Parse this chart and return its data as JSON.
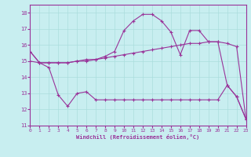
{
  "xlabel": "Windchill (Refroidissement éolien,°C)",
  "bg_color": "#c8eef0",
  "line_color": "#993399",
  "grid_color": "#aadddd",
  "xlim": [
    0,
    23
  ],
  "ylim": [
    11,
    18.5
  ],
  "yticks": [
    11,
    12,
    13,
    14,
    15,
    16,
    17,
    18
  ],
  "xticks": [
    0,
    1,
    2,
    3,
    4,
    5,
    6,
    7,
    8,
    9,
    10,
    11,
    12,
    13,
    14,
    15,
    16,
    17,
    18,
    19,
    20,
    21,
    22,
    23
  ],
  "line1_x": [
    0,
    1,
    2,
    3,
    4,
    5,
    6,
    7,
    8,
    9,
    10,
    11,
    12,
    13,
    14,
    15,
    16,
    17,
    18,
    19,
    20,
    21,
    22,
    23
  ],
  "line1_y": [
    15.6,
    14.9,
    14.6,
    12.9,
    12.2,
    13.0,
    13.1,
    12.6,
    12.6,
    12.6,
    12.6,
    12.6,
    12.6,
    12.6,
    12.6,
    12.6,
    12.6,
    12.6,
    12.6,
    12.6,
    12.6,
    13.5,
    12.8,
    11.4
  ],
  "line2_x": [
    0,
    1,
    2,
    3,
    4,
    5,
    6,
    7,
    8,
    9,
    10,
    11,
    12,
    13,
    14,
    15,
    16,
    17,
    18,
    19,
    20,
    21,
    22,
    23
  ],
  "line2_y": [
    15.0,
    14.9,
    14.9,
    14.9,
    14.9,
    15.0,
    15.1,
    15.1,
    15.2,
    15.3,
    15.4,
    15.5,
    15.6,
    15.7,
    15.8,
    15.9,
    16.0,
    16.1,
    16.1,
    16.2,
    16.2,
    16.1,
    15.9,
    11.4
  ],
  "line3_x": [
    0,
    1,
    2,
    3,
    4,
    5,
    6,
    7,
    8,
    9,
    10,
    11,
    12,
    13,
    14,
    15,
    16,
    17,
    18,
    19,
    20,
    21,
    22,
    23
  ],
  "line3_y": [
    15.6,
    14.9,
    14.9,
    14.9,
    14.9,
    15.0,
    15.0,
    15.1,
    15.3,
    15.6,
    16.9,
    17.5,
    17.9,
    17.9,
    17.5,
    16.8,
    15.4,
    16.9,
    16.9,
    16.2,
    16.2,
    13.5,
    12.8,
    11.4
  ]
}
